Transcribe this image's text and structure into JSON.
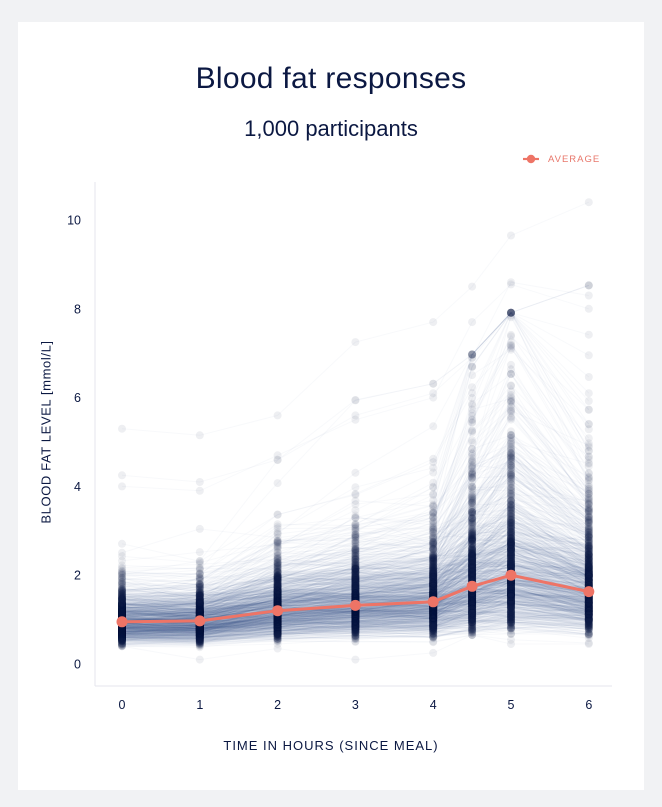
{
  "chart_data": {
    "type": "line",
    "title": "Blood fat responses",
    "subtitle": "1,000 participants",
    "xlabel": "TIME IN HOURS (SINCE MEAL)",
    "ylabel": "BLOOD FAT LEVEL [mmol/L]",
    "x": [
      0,
      1,
      2,
      3,
      4,
      4.5,
      5,
      6
    ],
    "xticks": [
      0,
      1,
      2,
      3,
      4,
      5,
      6
    ],
    "yticks": [
      0,
      2,
      4,
      6,
      8,
      10
    ],
    "xlim": [
      -0.35,
      6.3
    ],
    "ylim": [
      -0.5,
      10.9
    ],
    "grid": false,
    "legend_position": "top-right",
    "series": [
      {
        "name": "AVERAGE",
        "color": "#ee7466",
        "values": [
          0.95,
          0.97,
          1.2,
          1.32,
          1.4,
          1.75,
          2.0,
          1.63
        ]
      }
    ],
    "individual_traces": {
      "count": 1000,
      "color": "#1c2a6e",
      "description_of_range": {
        "min": [
          0.4,
          0.1,
          0.35,
          0.1,
          0.25,
          0.65,
          0.45,
          0.45
        ],
        "max": [
          5.3,
          5.15,
          5.6,
          7.25,
          7.7,
          8.5,
          9.65,
          10.4
        ]
      }
    }
  },
  "legend": {
    "label": "AVERAGE"
  },
  "colors": {
    "average": "#ee7466",
    "dots": "#0b1842",
    "axis_text": "#0b1842"
  }
}
